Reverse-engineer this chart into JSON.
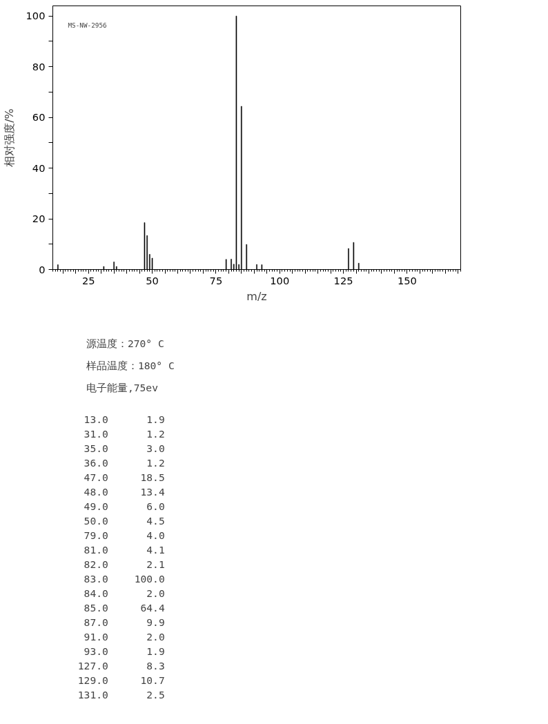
{
  "chart_data": [
    {
      "type": "bar",
      "xlabel": "m/z",
      "ylabel": "相对强度/%",
      "annotations": [
        "MS-NW-2956"
      ],
      "x": [
        13,
        31,
        35,
        36,
        47,
        48,
        49,
        50,
        79,
        81,
        82,
        83,
        84,
        85,
        87,
        91,
        93,
        127,
        129,
        131
      ],
      "values": [
        1.9,
        1.2,
        3.0,
        1.2,
        18.5,
        13.4,
        6.0,
        4.5,
        4.0,
        4.1,
        2.1,
        100.0,
        2.0,
        64.4,
        9.9,
        2.0,
        1.9,
        8.3,
        10.7,
        2.5
      ],
      "color": "#000000",
      "xlim": [
        11,
        171
      ],
      "ylim": [
        0,
        104
      ],
      "xticks": [
        {
          "value": 15,
          "label": null
        },
        {
          "value": 20,
          "label": null
        },
        25,
        {
          "value": 30,
          "label": null
        },
        {
          "value": 35,
          "label": null
        },
        {
          "value": 40,
          "label": null
        },
        {
          "value": 45,
          "label": null
        },
        50,
        {
          "value": 55,
          "label": null
        },
        {
          "value": 60,
          "label": null
        },
        {
          "value": 65,
          "label": null
        },
        {
          "value": 70,
          "label": null
        },
        75,
        {
          "value": 80,
          "label": null
        },
        {
          "value": 85,
          "label": null
        },
        {
          "value": 90,
          "label": null
        },
        {
          "value": 95,
          "label": null
        },
        100,
        {
          "value": 105,
          "label": null
        },
        {
          "value": 110,
          "label": null
        },
        {
          "value": 115,
          "label": null
        },
        {
          "value": 120,
          "label": null
        },
        125,
        {
          "value": 130,
          "label": null
        },
        {
          "value": 135,
          "label": null
        },
        {
          "value": 140,
          "label": null
        },
        {
          "value": 145,
          "label": null
        },
        150,
        {
          "value": 155,
          "label": null
        },
        {
          "value": 160,
          "label": null
        },
        {
          "value": 165,
          "label": null
        },
        {
          "value": 170,
          "label": null
        }
      ],
      "yticks": [
        0,
        {
          "value": 10,
          "label": null
        },
        20,
        {
          "value": 30,
          "label": null
        },
        40,
        {
          "value": 50,
          "label": null
        },
        60,
        {
          "value": 70,
          "label": null
        },
        80,
        {
          "value": 90,
          "label": null
        },
        100
      ],
      "grid": false
    },
    {
      "type": "other",
      "annotations": [
        "源温度：270° C",
        "样品温度：180° C",
        "电子能量,75ev"
      ],
      "categories": [
        "13.0",
        "31.0",
        "35.0",
        "36.0",
        "47.0",
        "48.0",
        "49.0",
        "50.0",
        "79.0",
        "81.0",
        "82.0",
        "83.0",
        "84.0",
        "85.0",
        "87.0",
        "91.0",
        "93.0",
        "127.0",
        "129.0",
        "131.0"
      ],
      "value_labels": [
        "1.9",
        "1.2",
        "3.0",
        "1.2",
        "18.5",
        "13.4",
        "6.0",
        "4.5",
        "4.0",
        "4.1",
        "2.1",
        "100.0",
        "2.0",
        "64.4",
        "9.9",
        "2.0",
        "1.9",
        "8.3",
        "10.7",
        "2.5"
      ]
    }
  ]
}
